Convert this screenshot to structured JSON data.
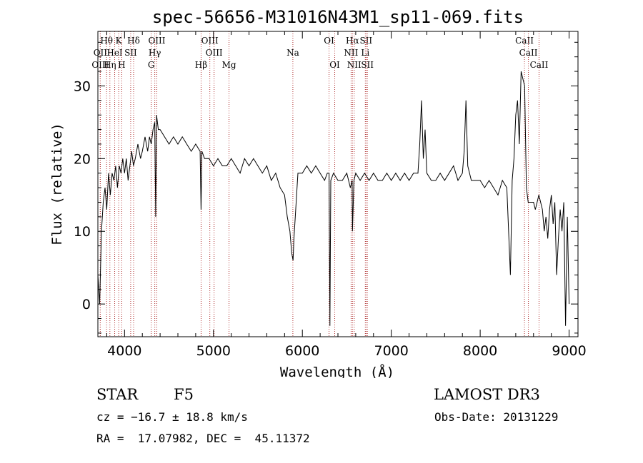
{
  "chart_data": {
    "type": "line",
    "title": "spec-56656-M31016N43M1_sp11-069.fits",
    "xlabel": "Wavelength (Å)",
    "ylabel": "Flux (relative)",
    "xlim": [
      3700,
      9100
    ],
    "ylim": [
      -4.5,
      37.5
    ],
    "xticks": [
      4000,
      5000,
      6000,
      7000,
      8000,
      9000
    ],
    "yticks": [
      0,
      10,
      20,
      30
    ],
    "series": [
      {
        "name": "flux",
        "x": [
          3700,
          3720,
          3740,
          3760,
          3780,
          3800,
          3820,
          3840,
          3860,
          3880,
          3900,
          3920,
          3940,
          3960,
          3980,
          4000,
          4020,
          4040,
          4060,
          4080,
          4100,
          4120,
          4150,
          4180,
          4200,
          4230,
          4260,
          4280,
          4300,
          4320,
          4340,
          4350,
          4360,
          4380,
          4400,
          4450,
          4500,
          4550,
          4600,
          4650,
          4700,
          4750,
          4800,
          4850,
          4860,
          4870,
          4900,
          4950,
          5000,
          5050,
          5100,
          5150,
          5200,
          5250,
          5300,
          5350,
          5400,
          5450,
          5500,
          5550,
          5600,
          5650,
          5700,
          5750,
          5800,
          5830,
          5860,
          5880,
          5895,
          5905,
          5920,
          5950,
          6000,
          6050,
          6100,
          6150,
          6200,
          6250,
          6280,
          6300,
          6310,
          6320,
          6350,
          6400,
          6450,
          6500,
          6540,
          6560,
          6563,
          6580,
          6600,
          6650,
          6700,
          6750,
          6800,
          6850,
          6900,
          6950,
          7000,
          7050,
          7100,
          7150,
          7200,
          7250,
          7300,
          7320,
          7340,
          7360,
          7380,
          7400,
          7450,
          7500,
          7550,
          7600,
          7650,
          7700,
          7750,
          7800,
          7820,
          7840,
          7860,
          7880,
          7900,
          7950,
          8000,
          8050,
          8100,
          8150,
          8200,
          8250,
          8300,
          8340,
          8360,
          8380,
          8400,
          8420,
          8440,
          8460,
          8480,
          8500,
          8520,
          8540,
          8560,
          8580,
          8600,
          8620,
          8640,
          8660,
          8680,
          8700,
          8720,
          8740,
          8760,
          8780,
          8800,
          8820,
          8840,
          8860,
          8880,
          8900,
          8920,
          8940,
          8960,
          8980,
          9000
        ],
        "y": [
          4,
          0,
          10,
          14,
          16,
          13,
          18,
          15,
          18,
          17,
          19,
          16,
          19,
          18,
          20,
          18,
          20,
          17,
          19,
          21,
          19,
          20,
          22,
          20,
          21,
          23,
          21,
          23,
          22,
          24,
          25,
          12,
          26,
          24,
          24,
          23,
          22,
          23,
          22,
          23,
          22,
          21,
          22,
          21,
          13,
          21,
          20,
          20,
          19,
          20,
          19,
          19,
          20,
          19,
          18,
          20,
          19,
          20,
          19,
          18,
          19,
          17,
          18,
          16,
          15,
          12,
          10,
          7,
          6,
          9,
          12,
          18,
          18,
          19,
          18,
          19,
          18,
          17,
          18,
          18,
          -3,
          17,
          18,
          17,
          17,
          18,
          16,
          17,
          10,
          17,
          18,
          17,
          18,
          17,
          18,
          17,
          17,
          18,
          17,
          18,
          17,
          18,
          17,
          18,
          18,
          22,
          28,
          20,
          24,
          18,
          17,
          17,
          18,
          17,
          18,
          19,
          17,
          18,
          21,
          28,
          19,
          18,
          17,
          17,
          17,
          16,
          17,
          16,
          15,
          17,
          16,
          4,
          17,
          20,
          26,
          28,
          22,
          32,
          31,
          30,
          16,
          14,
          14,
          14,
          14,
          13,
          14,
          15,
          14,
          13,
          10,
          12,
          9,
          13,
          15,
          11,
          14,
          4,
          9,
          13,
          10,
          14,
          -3,
          12,
          0
        ]
      }
    ],
    "lines": [
      {
        "name": "Hθ",
        "wl": 3798,
        "row": 0
      },
      {
        "name": "OII",
        "wl": 3727,
        "row": 1
      },
      {
        "name": "OIII",
        "wl": 3727,
        "row": 2
      },
      {
        "name": "K",
        "wl": 3934,
        "row": 0
      },
      {
        "name": "HeI",
        "wl": 3889,
        "row": 1
      },
      {
        "name": "Hη",
        "wl": 3835,
        "row": 2
      },
      {
        "name": "SII",
        "wl": 4069,
        "row": 1
      },
      {
        "name": "H",
        "wl": 3968,
        "row": 2
      },
      {
        "name": "Hδ",
        "wl": 4102,
        "row": 0
      },
      {
        "name": "OIII",
        "wl": 4363,
        "row": 0
      },
      {
        "name": "Hγ",
        "wl": 4340,
        "row": 1
      },
      {
        "name": "G",
        "wl": 4300,
        "row": 2
      },
      {
        "name": "Hβ",
        "wl": 4861,
        "row": 2
      },
      {
        "name": "OIII",
        "wl": 4959,
        "row": 0
      },
      {
        "name": "OIII",
        "wl": 5007,
        "row": 1
      },
      {
        "name": "Mg",
        "wl": 5175,
        "row": 2
      },
      {
        "name": "Na",
        "wl": 5893,
        "row": 1
      },
      {
        "name": "OI",
        "wl": 6300,
        "row": 0
      },
      {
        "name": "OI",
        "wl": 6364,
        "row": 2
      },
      {
        "name": "Hα",
        "wl": 6563,
        "row": 0
      },
      {
        "name": "NII",
        "wl": 6548,
        "row": 1
      },
      {
        "name": "NII",
        "wl": 6583,
        "row": 2
      },
      {
        "name": "SII",
        "wl": 6716,
        "row": 0
      },
      {
        "name": "Li",
        "wl": 6708,
        "row": 1
      },
      {
        "name": "SII",
        "wl": 6731,
        "row": 2
      },
      {
        "name": "CaII",
        "wl": 8498,
        "row": 0
      },
      {
        "name": "CaII",
        "wl": 8542,
        "row": 1
      },
      {
        "name": "CaII",
        "wl": 8662,
        "row": 2
      }
    ]
  },
  "info": {
    "class": "STAR",
    "subclass": "F5",
    "source": "LAMOST DR3",
    "cz": "cz = −16.7 ± 18.8 km/s",
    "obs_date": "Obs-Date: 20131229",
    "radec": "RA =  17.07982, DEC =  45.11372"
  }
}
